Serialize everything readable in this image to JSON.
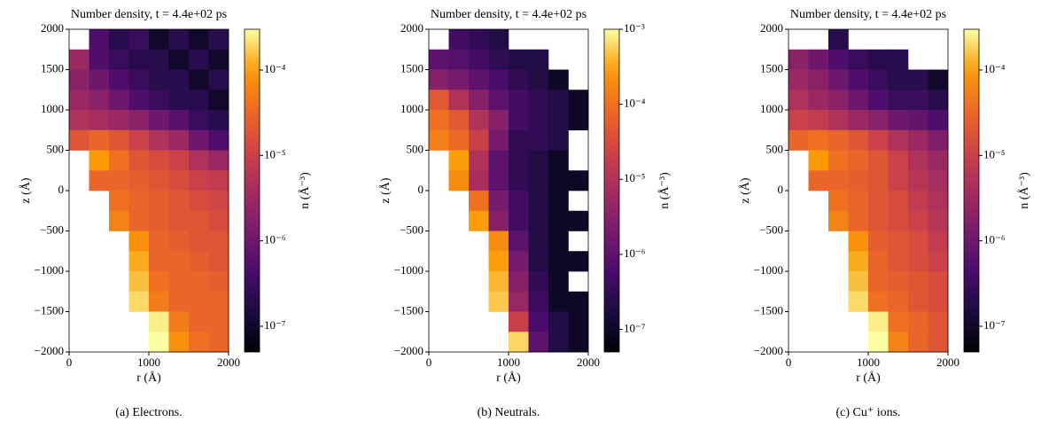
{
  "chart_data": [
    {
      "type": "heatmap",
      "title": "Number density, t = 4.4e+02 ps",
      "xlabel": "r (Å)",
      "ylabel": "z (Å)",
      "colorbar_label": "n (Å⁻³)",
      "caption": "(a) Electrons.",
      "colormap": "inferno",
      "color_log": true,
      "xbins": [
        0,
        250,
        500,
        750,
        1000,
        1250,
        1500,
        1750,
        2000
      ],
      "ybins": [
        2000,
        1750,
        1500,
        1250,
        1000,
        750,
        500,
        250,
        0,
        -250,
        -500,
        -750,
        -1000,
        -1250,
        -1500,
        -1750,
        -2000
      ],
      "values": [
        [
          null,
          5e-07,
          2e-07,
          3e-07,
          1e-07,
          2e-07,
          1e-07,
          2e-07
        ],
        [
          3e-06,
          5e-07,
          3e-07,
          2e-07,
          2e-07,
          1e-07,
          2e-07,
          1e-07
        ],
        [
          2e-06,
          1e-06,
          5e-07,
          3e-07,
          2e-07,
          2e-07,
          1e-07,
          2e-07
        ],
        [
          3e-06,
          2e-06,
          1e-06,
          5e-07,
          3e-07,
          2e-07,
          2e-07,
          1e-07
        ],
        [
          5e-06,
          4e-06,
          3e-06,
          2e-06,
          1e-06,
          6e-07,
          3e-07,
          2e-07
        ],
        [
          2e-05,
          3e-05,
          2e-05,
          1e-05,
          5e-06,
          3e-06,
          1e-06,
          5e-07
        ],
        [
          null,
          0.0001,
          4e-05,
          2e-05,
          1.5e-05,
          1e-05,
          5e-06,
          3e-06
        ],
        [
          null,
          3e-05,
          3e-05,
          2.5e-05,
          2e-05,
          1.5e-05,
          1e-05,
          8e-06
        ],
        [
          null,
          null,
          4e-05,
          3e-05,
          2.5e-05,
          2e-05,
          1.5e-05,
          1.2e-05
        ],
        [
          null,
          null,
          6e-05,
          3e-05,
          2.5e-05,
          2e-05,
          2e-05,
          1.5e-05
        ],
        [
          null,
          null,
          null,
          8e-05,
          3e-05,
          2.5e-05,
          2e-05,
          2e-05
        ],
        [
          null,
          null,
          null,
          0.00012,
          3e-05,
          3e-05,
          2.5e-05,
          2e-05
        ],
        [
          null,
          null,
          null,
          0.00015,
          4e-05,
          3e-05,
          3e-05,
          2.5e-05
        ],
        [
          null,
          null,
          null,
          0.0002,
          5e-05,
          3e-05,
          3e-05,
          3e-05
        ],
        [
          null,
          null,
          null,
          null,
          0.00025,
          5e-05,
          3e-05,
          3e-05
        ],
        [
          null,
          null,
          null,
          null,
          0.0003,
          8e-05,
          4e-05,
          3e-05
        ]
      ],
      "xlim": [
        0,
        2000
      ],
      "ylim": [
        -2000,
        2000
      ],
      "xticks": [
        0,
        1000,
        2000
      ],
      "yticks": [
        {
          "value": -2000,
          "label": "−2000"
        },
        {
          "value": -1500,
          "label": "−1500"
        },
        {
          "value": -1000,
          "label": "−1000"
        },
        {
          "value": -500,
          "label": "−500"
        },
        0,
        500,
        1000,
        1500,
        2000
      ],
      "clim": [
        5e-08,
        0.0003
      ],
      "cticks": [
        {
          "value": 1e-07,
          "label": "10⁻⁷"
        },
        {
          "value": 1e-06,
          "label": "10⁻⁶"
        },
        {
          "value": 1e-05,
          "label": "10⁻⁵"
        },
        {
          "value": 0.0001,
          "label": "10⁻⁴"
        }
      ]
    },
    {
      "type": "heatmap",
      "title": "Number density, t = 4.4e+02 ps",
      "xlabel": "r (Å)",
      "ylabel": "z (Å)",
      "colorbar_label": "n (Å⁻³)",
      "caption": "(b) Neutrals.",
      "colormap": "inferno",
      "color_log": true,
      "xbins": [
        0,
        250,
        500,
        750,
        1000,
        1250,
        1500,
        1750,
        2000
      ],
      "ybins": [
        2000,
        1750,
        1500,
        1250,
        1000,
        750,
        500,
        250,
        0,
        -250,
        -500,
        -750,
        -1000,
        -1250,
        -1500,
        -1750,
        -2000
      ],
      "values": [
        [
          null,
          5e-07,
          3e-07,
          2e-07,
          null,
          null,
          null,
          null
        ],
        [
          1e-06,
          8e-07,
          5e-07,
          3e-07,
          2e-07,
          2e-07,
          null,
          null
        ],
        [
          3e-06,
          2e-06,
          1e-06,
          6e-07,
          3e-07,
          2e-07,
          1e-07,
          null
        ],
        [
          5e-05,
          1e-05,
          3e-06,
          1e-06,
          5e-07,
          3e-07,
          2e-07,
          1e-07
        ],
        [
          0.0001,
          5e-05,
          1e-05,
          3e-06,
          5e-07,
          3e-07,
          2e-07,
          1e-07
        ],
        [
          0.00015,
          8e-05,
          2e-05,
          2e-06,
          3e-07,
          3e-07,
          2e-07,
          null
        ],
        [
          null,
          0.0003,
          1e-05,
          1e-06,
          3e-07,
          2e-07,
          1e-07,
          null
        ],
        [
          null,
          0.0002,
          8e-06,
          1e-06,
          3e-07,
          2e-07,
          1e-07,
          1e-07
        ],
        [
          null,
          null,
          0.0001,
          2e-06,
          5e-07,
          2e-07,
          1e-07,
          null
        ],
        [
          null,
          null,
          0.0003,
          3e-06,
          5e-07,
          2e-07,
          1e-07,
          1e-07
        ],
        [
          null,
          null,
          null,
          0.0002,
          1e-06,
          2e-07,
          1e-07,
          null
        ],
        [
          null,
          null,
          null,
          0.0003,
          2e-06,
          2e-07,
          1e-07,
          1e-07
        ],
        [
          null,
          null,
          null,
          0.0004,
          3e-06,
          3e-07,
          1e-07,
          null
        ],
        [
          null,
          null,
          null,
          0.0005,
          5e-06,
          4e-07,
          1e-07,
          1e-07
        ],
        [
          null,
          null,
          null,
          null,
          2e-05,
          6e-07,
          2e-07,
          1e-07
        ],
        [
          null,
          null,
          null,
          null,
          0.0006,
          1e-06,
          2e-07,
          1e-07
        ]
      ],
      "xlim": [
        0,
        2000
      ],
      "ylim": [
        -2000,
        2000
      ],
      "xticks": [
        0,
        1000,
        2000
      ],
      "yticks": [
        {
          "value": -2000,
          "label": "−2000"
        },
        {
          "value": -1500,
          "label": "−1500"
        },
        {
          "value": -1000,
          "label": "−1000"
        },
        {
          "value": -500,
          "label": "−500"
        },
        0,
        500,
        1000,
        1500,
        2000
      ],
      "clim": [
        5e-08,
        0.001
      ],
      "cticks": [
        {
          "value": 1e-07,
          "label": "10⁻⁷"
        },
        {
          "value": 1e-06,
          "label": "10⁻⁶"
        },
        {
          "value": 1e-05,
          "label": "10⁻⁵"
        },
        {
          "value": 0.0001,
          "label": "10⁻⁴"
        },
        {
          "value": 0.001,
          "label": "10⁻³"
        }
      ]
    },
    {
      "type": "heatmap",
      "title": "Number density, t = 4.4e+02 ps",
      "xlabel": "r (Å)",
      "ylabel": "z (Å)",
      "colorbar_label": "n (Å⁻³)",
      "caption": "(c) Cu⁺ ions.",
      "colormap": "inferno",
      "color_log": true,
      "xbins": [
        0,
        250,
        500,
        750,
        1000,
        1250,
        1500,
        1750,
        2000
      ],
      "ybins": [
        2000,
        1750,
        1500,
        1250,
        1000,
        750,
        500,
        250,
        0,
        -250,
        -500,
        -750,
        -1000,
        -1250,
        -1500,
        -1750,
        -2000
      ],
      "values": [
        [
          null,
          null,
          2e-07,
          null,
          null,
          null,
          null,
          null
        ],
        [
          2e-06,
          1e-06,
          5e-07,
          3e-07,
          2e-07,
          2e-07,
          null,
          null
        ],
        [
          3e-06,
          2e-06,
          1e-06,
          5e-07,
          3e-07,
          2e-07,
          2e-07,
          1e-07
        ],
        [
          5e-06,
          3e-06,
          2e-06,
          1e-06,
          5e-07,
          3e-07,
          3e-07,
          2e-07
        ],
        [
          1e-05,
          8e-06,
          5e-06,
          3e-06,
          2e-06,
          1e-06,
          8e-07,
          5e-07
        ],
        [
          3e-05,
          4e-05,
          3e-05,
          2e-05,
          1e-05,
          5e-06,
          3e-06,
          1.5e-06
        ],
        [
          null,
          0.0001,
          4e-05,
          3e-05,
          2e-05,
          1e-05,
          5e-06,
          3e-06
        ],
        [
          null,
          3e-05,
          3e-05,
          2.5e-05,
          2e-05,
          1e-05,
          6e-06,
          4e-06
        ],
        [
          null,
          null,
          4e-05,
          3e-05,
          2e-05,
          1.5e-05,
          8e-06,
          5e-06
        ],
        [
          null,
          null,
          6e-05,
          3e-05,
          2e-05,
          1.5e-05,
          1e-05,
          6e-06
        ],
        [
          null,
          null,
          null,
          8e-05,
          2.5e-05,
          2e-05,
          1.5e-05,
          8e-06
        ],
        [
          null,
          null,
          null,
          0.00012,
          3e-05,
          2e-05,
          1.5e-05,
          1e-05
        ],
        [
          null,
          null,
          null,
          0.00015,
          3e-05,
          2.5e-05,
          2e-05,
          1.5e-05
        ],
        [
          null,
          null,
          null,
          0.0002,
          4e-05,
          3e-05,
          2e-05,
          1.5e-05
        ],
        [
          null,
          null,
          null,
          null,
          0.00025,
          4e-05,
          3e-05,
          2e-05
        ],
        [
          null,
          null,
          null,
          null,
          0.0003,
          6e-05,
          3e-05,
          2e-05
        ]
      ],
      "xlim": [
        0,
        2000
      ],
      "ylim": [
        -2000,
        2000
      ],
      "xticks": [
        0,
        1000,
        2000
      ],
      "yticks": [
        {
          "value": -2000,
          "label": "−2000"
        },
        {
          "value": -1500,
          "label": "−1500"
        },
        {
          "value": -1000,
          "label": "−1000"
        },
        {
          "value": -500,
          "label": "−500"
        },
        0,
        500,
        1000,
        1500,
        2000
      ],
      "clim": [
        5e-08,
        0.0003
      ],
      "cticks": [
        {
          "value": 1e-07,
          "label": "10⁻⁷"
        },
        {
          "value": 1e-06,
          "label": "10⁻⁶"
        },
        {
          "value": 1e-05,
          "label": "10⁻⁵"
        },
        {
          "value": 0.0001,
          "label": "10⁻⁴"
        }
      ]
    }
  ]
}
